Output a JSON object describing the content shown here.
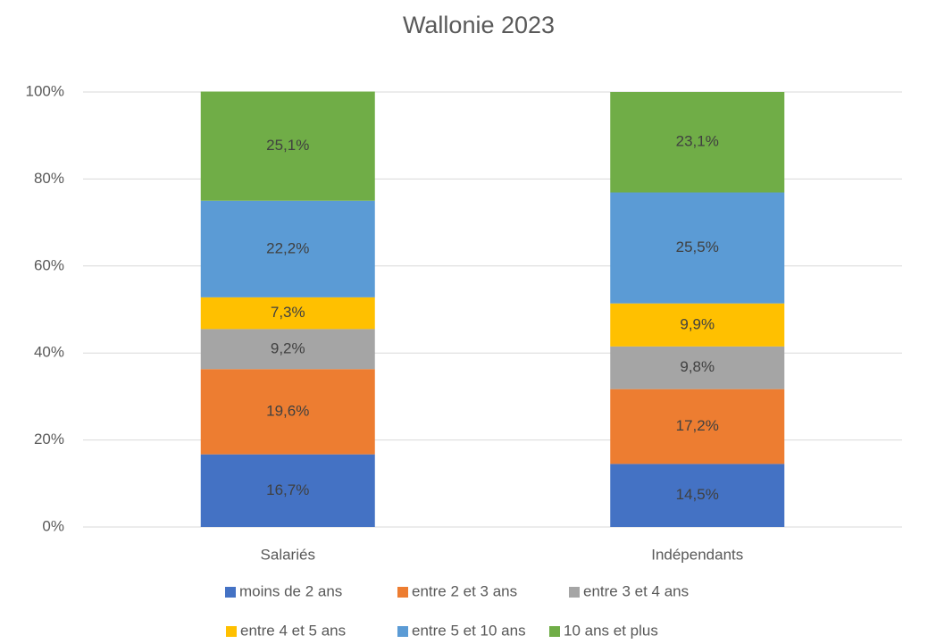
{
  "chart_data": {
    "type": "stacked_bar",
    "title": "Wallonie 2023",
    "categories": [
      "Salariés",
      "Indépendants"
    ],
    "series": [
      {
        "name": "moins de 2 ans",
        "color": "#4472c4",
        "values": [
          16.7,
          14.5
        ],
        "value_labels": [
          "16,7%",
          "14,5%"
        ]
      },
      {
        "name": "entre 2 et 3 ans",
        "color": "#ed7d31",
        "values": [
          19.6,
          17.2
        ],
        "value_labels": [
          "19,6%",
          "17,2%"
        ]
      },
      {
        "name": "entre 3 et 4 ans",
        "color": "#a5a5a5",
        "values": [
          9.2,
          9.8
        ],
        "value_labels": [
          "9,2%",
          "9,8%"
        ]
      },
      {
        "name": "entre 4 et 5 ans",
        "color": "#ffc000",
        "values": [
          7.3,
          9.9
        ],
        "value_labels": [
          "7,3%",
          "9,9%"
        ]
      },
      {
        "name": "entre 5 et 10 ans",
        "color": "#5b9bd5",
        "values": [
          22.2,
          25.5
        ],
        "value_labels": [
          "22,2%",
          "25,5%"
        ]
      },
      {
        "name": "10 ans et plus",
        "color": "#70ad47",
        "values": [
          25.1,
          23.1
        ],
        "value_labels": [
          "25,1%",
          "23,1%"
        ]
      }
    ],
    "ylim": [
      0,
      100
    ],
    "yticks": [
      {
        "value": 0,
        "label": "0%"
      },
      {
        "value": 20,
        "label": "20%"
      },
      {
        "value": 40,
        "label": "40%"
      },
      {
        "value": 60,
        "label": "60%"
      },
      {
        "value": 80,
        "label": "80%"
      },
      {
        "value": 100,
        "label": "100%"
      }
    ],
    "grid": true,
    "legend": "bottom"
  }
}
